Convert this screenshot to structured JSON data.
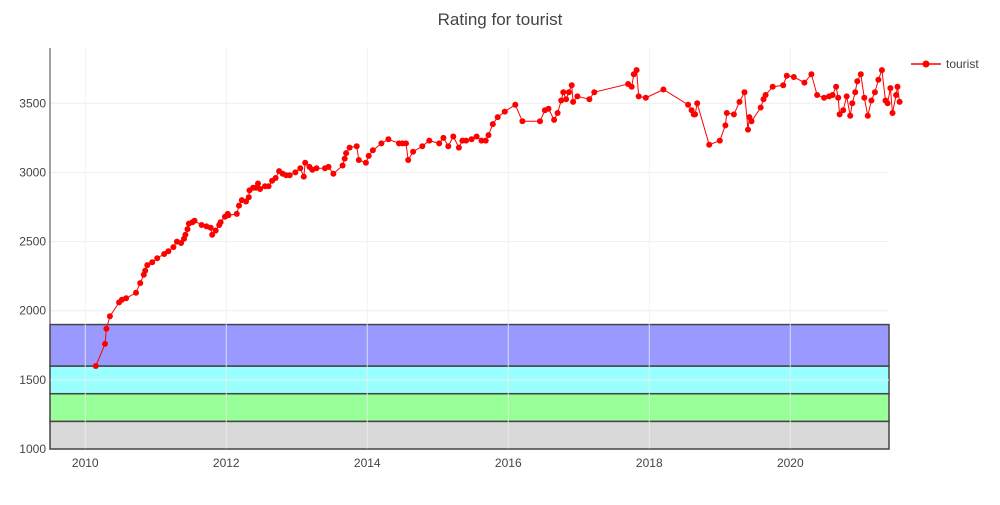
{
  "chart_data": {
    "type": "line",
    "title": "Rating for tourist",
    "xlabel": "",
    "ylabel": "",
    "xlim": [
      2009.5,
      2021.4
    ],
    "ylim": [
      1000,
      3900
    ],
    "x_ticks": [
      2010,
      2012,
      2014,
      2016,
      2018,
      2020
    ],
    "x_tick_labels": [
      "2010",
      "2012",
      "2014",
      "2016",
      "2018",
      "2020"
    ],
    "y_ticks": [
      1000,
      1500,
      2000,
      2500,
      3000,
      3500
    ],
    "y_tick_labels": [
      "1000",
      "1500",
      "2000",
      "2500",
      "3000",
      "3500"
    ],
    "grid": true,
    "legend_position": "top-right",
    "bands": [
      {
        "from": 1000,
        "to": 1200,
        "color": "#d9d9d9"
      },
      {
        "from": 1200,
        "to": 1400,
        "color": "#99ff99"
      },
      {
        "from": 1400,
        "to": 1600,
        "color": "#99ffff"
      },
      {
        "from": 1600,
        "to": 1900,
        "color": "#9999ff"
      }
    ],
    "series": [
      {
        "name": "tourist",
        "color": "#ff0000",
        "points": [
          [
            2010.15,
            1600
          ],
          [
            2010.28,
            1760
          ],
          [
            2010.3,
            1870
          ],
          [
            2010.35,
            1960
          ],
          [
            2010.48,
            2060
          ],
          [
            2010.52,
            2080
          ],
          [
            2010.58,
            2090
          ],
          [
            2010.72,
            2130
          ],
          [
            2010.78,
            2200
          ],
          [
            2010.83,
            2260
          ],
          [
            2010.85,
            2290
          ],
          [
            2010.88,
            2330
          ],
          [
            2010.95,
            2350
          ],
          [
            2011.02,
            2380
          ],
          [
            2011.12,
            2410
          ],
          [
            2011.18,
            2430
          ],
          [
            2011.25,
            2460
          ],
          [
            2011.3,
            2500
          ],
          [
            2011.36,
            2490
          ],
          [
            2011.4,
            2520
          ],
          [
            2011.42,
            2550
          ],
          [
            2011.45,
            2590
          ],
          [
            2011.47,
            2630
          ],
          [
            2011.52,
            2640
          ],
          [
            2011.55,
            2650
          ],
          [
            2011.65,
            2620
          ],
          [
            2011.72,
            2610
          ],
          [
            2011.78,
            2600
          ],
          [
            2011.8,
            2550
          ],
          [
            2011.85,
            2580
          ],
          [
            2011.9,
            2620
          ],
          [
            2011.92,
            2640
          ],
          [
            2011.98,
            2680
          ],
          [
            2012.02,
            2700
          ],
          [
            2012.03,
            2690
          ],
          [
            2012.15,
            2700
          ],
          [
            2012.18,
            2760
          ],
          [
            2012.22,
            2800
          ],
          [
            2012.28,
            2790
          ],
          [
            2012.32,
            2820
          ],
          [
            2012.33,
            2870
          ],
          [
            2012.38,
            2890
          ],
          [
            2012.42,
            2890
          ],
          [
            2012.45,
            2920
          ],
          [
            2012.48,
            2880
          ],
          [
            2012.55,
            2900
          ],
          [
            2012.6,
            2900
          ],
          [
            2012.65,
            2940
          ],
          [
            2012.7,
            2960
          ],
          [
            2012.75,
            3010
          ],
          [
            2012.8,
            2990
          ],
          [
            2012.85,
            2980
          ],
          [
            2012.9,
            2980
          ],
          [
            2012.98,
            3000
          ],
          [
            2013.05,
            3030
          ],
          [
            2013.1,
            2970
          ],
          [
            2013.12,
            3070
          ],
          [
            2013.18,
            3040
          ],
          [
            2013.22,
            3020
          ],
          [
            2013.28,
            3030
          ],
          [
            2013.4,
            3030
          ],
          [
            2013.45,
            3040
          ],
          [
            2013.52,
            2990
          ],
          [
            2013.65,
            3050
          ],
          [
            2013.68,
            3100
          ],
          [
            2013.7,
            3140
          ],
          [
            2013.75,
            3180
          ],
          [
            2013.85,
            3190
          ],
          [
            2013.88,
            3090
          ],
          [
            2013.98,
            3070
          ],
          [
            2014.02,
            3120
          ],
          [
            2014.08,
            3160
          ],
          [
            2014.2,
            3210
          ],
          [
            2014.3,
            3240
          ],
          [
            2014.45,
            3210
          ],
          [
            2014.5,
            3210
          ],
          [
            2014.55,
            3210
          ],
          [
            2014.58,
            3090
          ],
          [
            2014.65,
            3150
          ],
          [
            2014.78,
            3190
          ],
          [
            2014.88,
            3230
          ],
          [
            2015.02,
            3210
          ],
          [
            2015.08,
            3250
          ],
          [
            2015.15,
            3190
          ],
          [
            2015.22,
            3260
          ],
          [
            2015.3,
            3180
          ],
          [
            2015.35,
            3230
          ],
          [
            2015.4,
            3230
          ],
          [
            2015.48,
            3240
          ],
          [
            2015.55,
            3260
          ],
          [
            2015.62,
            3230
          ],
          [
            2015.68,
            3230
          ],
          [
            2015.72,
            3270
          ],
          [
            2015.78,
            3350
          ],
          [
            2015.85,
            3400
          ],
          [
            2015.95,
            3440
          ],
          [
            2016.1,
            3490
          ],
          [
            2016.2,
            3370
          ],
          [
            2016.45,
            3370
          ],
          [
            2016.52,
            3450
          ],
          [
            2016.57,
            3460
          ],
          [
            2016.65,
            3380
          ],
          [
            2016.7,
            3430
          ],
          [
            2016.75,
            3520
          ],
          [
            2016.78,
            3580
          ],
          [
            2016.82,
            3530
          ],
          [
            2016.86,
            3580
          ],
          [
            2016.9,
            3630
          ],
          [
            2016.92,
            3510
          ],
          [
            2016.98,
            3550
          ],
          [
            2017.15,
            3530
          ],
          [
            2017.22,
            3580
          ],
          [
            2017.7,
            3640
          ],
          [
            2017.75,
            3620
          ],
          [
            2017.78,
            3710
          ],
          [
            2017.82,
            3740
          ],
          [
            2017.85,
            3550
          ],
          [
            2017.95,
            3540
          ],
          [
            2018.2,
            3600
          ],
          [
            2018.55,
            3490
          ],
          [
            2018.6,
            3450
          ],
          [
            2018.63,
            3420
          ],
          [
            2018.65,
            3420
          ],
          [
            2018.68,
            3500
          ],
          [
            2018.85,
            3200
          ],
          [
            2019.0,
            3230
          ],
          [
            2019.08,
            3340
          ],
          [
            2019.1,
            3430
          ],
          [
            2019.2,
            3420
          ],
          [
            2019.28,
            3510
          ],
          [
            2019.35,
            3580
          ],
          [
            2019.4,
            3310
          ],
          [
            2019.42,
            3400
          ],
          [
            2019.45,
            3370
          ],
          [
            2019.58,
            3470
          ],
          [
            2019.62,
            3530
          ],
          [
            2019.65,
            3560
          ],
          [
            2019.75,
            3620
          ],
          [
            2019.9,
            3630
          ],
          [
            2019.95,
            3700
          ],
          [
            2020.05,
            3690
          ],
          [
            2020.2,
            3650
          ],
          [
            2020.3,
            3710
          ],
          [
            2020.38,
            3560
          ],
          [
            2020.48,
            3540
          ],
          [
            2020.55,
            3550
          ],
          [
            2020.6,
            3560
          ],
          [
            2020.65,
            3620
          ],
          [
            2020.68,
            3540
          ],
          [
            2020.7,
            3420
          ],
          [
            2020.75,
            3450
          ],
          [
            2020.8,
            3550
          ],
          [
            2020.85,
            3410
          ],
          [
            2020.88,
            3500
          ],
          [
            2020.92,
            3580
          ],
          [
            2020.95,
            3660
          ],
          [
            2021.0,
            3710
          ],
          [
            2021.05,
            3540
          ],
          [
            2021.1,
            3410
          ],
          [
            2021.15,
            3520
          ],
          [
            2021.2,
            3580
          ],
          [
            2021.25,
            3670
          ],
          [
            2021.3,
            3740
          ],
          [
            2021.35,
            3520
          ],
          [
            2021.38,
            3500
          ],
          [
            2021.42,
            3610
          ],
          [
            2021.45,
            3430
          ],
          [
            2021.5,
            3560
          ],
          [
            2021.52,
            3620
          ],
          [
            2021.55,
            3510
          ]
        ]
      }
    ]
  }
}
